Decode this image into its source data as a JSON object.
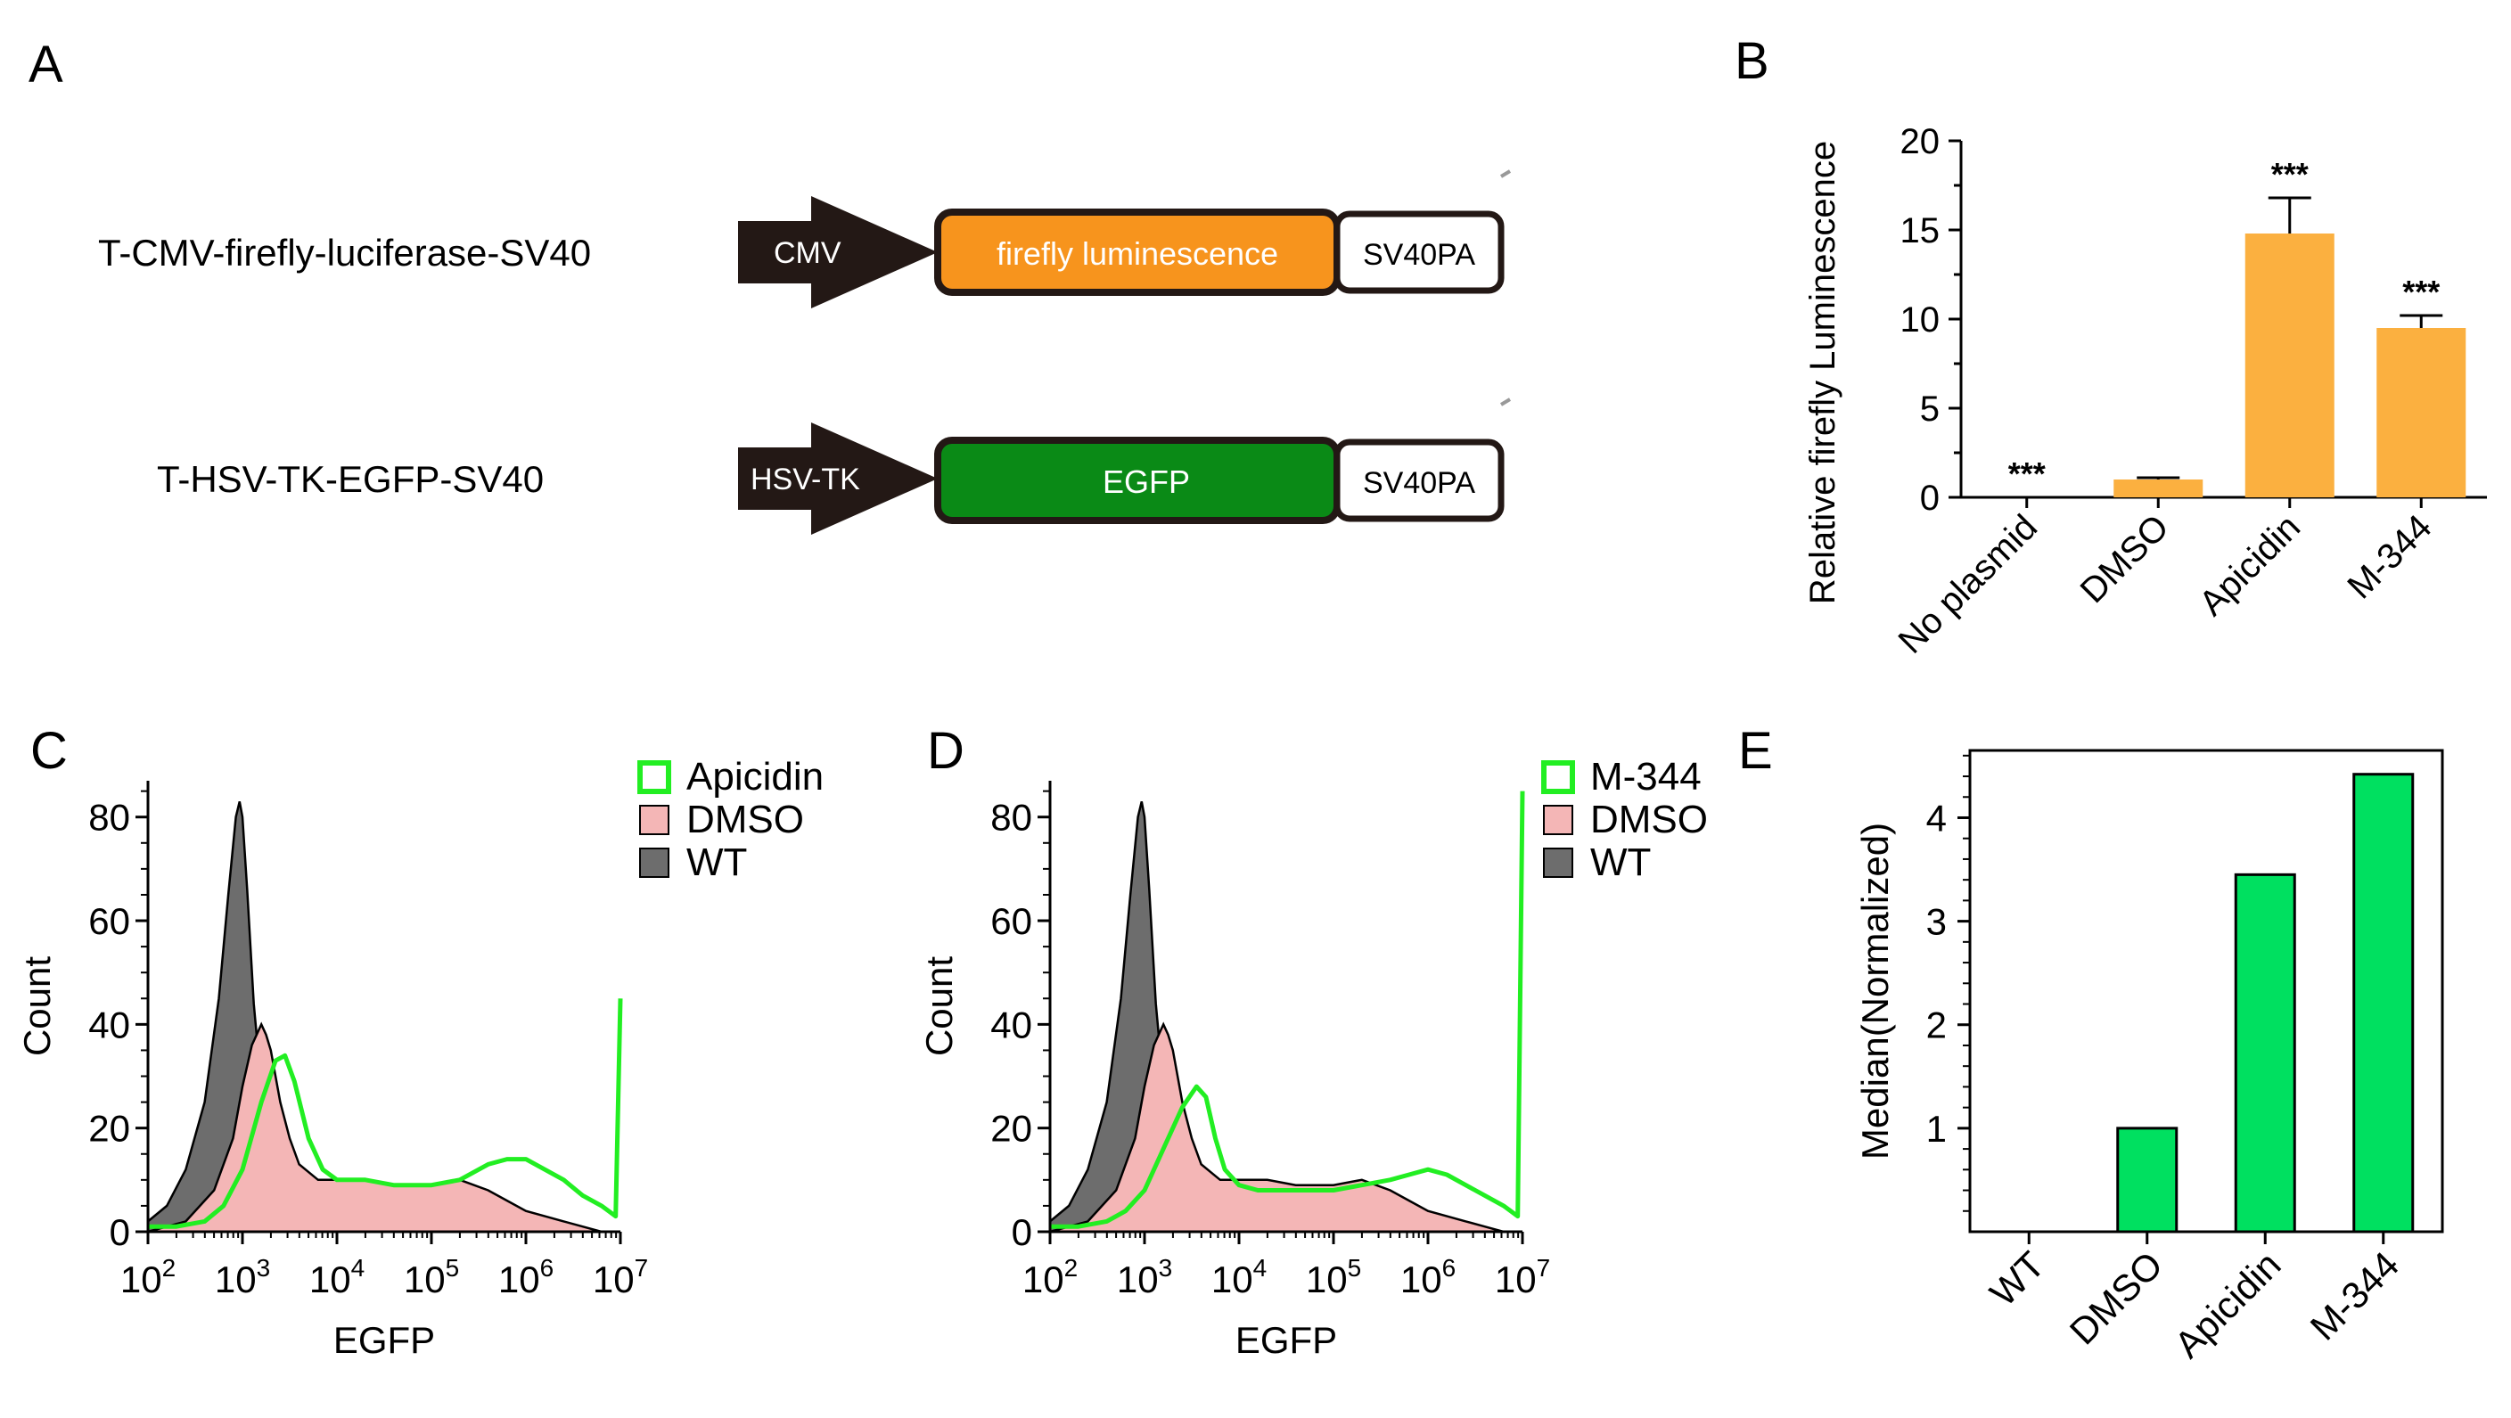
{
  "panel_labels": {
    "a": "A",
    "b": "B",
    "c": "C",
    "d": "D",
    "e": "E"
  },
  "constructs": [
    {
      "name": "T-CMV-firefly-luciferase-SV40",
      "promoter": "CMV",
      "gene": "firefly luminescence",
      "terminator": "SV40PA",
      "gene_color": "#f7941d",
      "gene_text_color": "#ffffff"
    },
    {
      "name": "T-HSV-TK-EGFP-SV40",
      "promoter": "HSV-TK",
      "gene": "EGFP",
      "terminator": "SV40PA",
      "gene_color": "#0a8a16",
      "gene_text_color": "#ffffff"
    }
  ],
  "colors": {
    "dark": "#231815",
    "bar_b": "#fbb040",
    "bar_e": "#00e060",
    "green_line": "#22ee22",
    "dmso_fill": "#f4b6b6",
    "wt_fill": "#6d6d6d"
  },
  "chart_data": [
    {
      "id": "B",
      "type": "bar",
      "title": "",
      "xlabel": "",
      "ylabel": "Relative firefly Luminescence",
      "categories": [
        "No plasmid",
        "DMSO",
        "Apicidin",
        "M-344"
      ],
      "values": [
        0,
        1,
        14.8,
        9.5
      ],
      "errors": [
        0,
        0.1,
        2.0,
        0.7
      ],
      "annotations": [
        "***",
        "",
        "***",
        "***"
      ],
      "ylim": [
        0,
        20
      ],
      "yticks": [
        0,
        5,
        10,
        15,
        20
      ],
      "ytick_labels": [
        "0",
        "5",
        "10",
        "15",
        "20"
      ]
    },
    {
      "id": "C",
      "type": "area",
      "xlabel": "EGFP",
      "ylabel": "Count",
      "xscale": "log",
      "xlim_log10": [
        2,
        7
      ],
      "ylim": [
        0,
        87
      ],
      "yticks": [
        0,
        20,
        40,
        60,
        80
      ],
      "ytick_labels": [
        "0",
        "20",
        "40",
        "60",
        "80"
      ],
      "xtick_labels": [
        {
          "base": "10",
          "exp": "2"
        },
        {
          "base": "10",
          "exp": "3"
        },
        {
          "base": "10",
          "exp": "4"
        },
        {
          "base": "10",
          "exp": "5"
        },
        {
          "base": "10",
          "exp": "6"
        },
        {
          "base": "10",
          "exp": "7"
        }
      ],
      "legend": [
        "Apicidin",
        "DMSO",
        "WT"
      ],
      "series": [
        {
          "name": "WT",
          "style": "fill-dark",
          "x": [
            2.0,
            2.2,
            2.4,
            2.6,
            2.75,
            2.85,
            2.93,
            2.97,
            3.0,
            3.05,
            3.12,
            3.2,
            3.3,
            3.4,
            3.5,
            3.6,
            3.8,
            4.0
          ],
          "y": [
            2,
            5,
            12,
            25,
            45,
            65,
            80,
            83,
            80,
            66,
            44,
            28,
            14,
            8,
            4,
            2,
            1,
            0
          ]
        },
        {
          "name": "DMSO",
          "style": "fill-pink",
          "x": [
            2.0,
            2.4,
            2.7,
            2.9,
            3.0,
            3.1,
            3.2,
            3.25,
            3.3,
            3.4,
            3.5,
            3.6,
            3.8,
            4.0,
            4.3,
            4.6,
            5.0,
            5.3,
            5.6,
            5.8,
            6.0,
            6.2,
            6.4,
            6.6,
            6.8,
            7.0
          ],
          "y": [
            0,
            2,
            8,
            18,
            28,
            36,
            40,
            38,
            35,
            25,
            18,
            13,
            10,
            10,
            10,
            9,
            9,
            10,
            8,
            6,
            4,
            3,
            2,
            1,
            0,
            0
          ]
        },
        {
          "name": "Apicidin",
          "style": "line-green",
          "x": [
            2.0,
            2.3,
            2.6,
            2.8,
            3.0,
            3.2,
            3.35,
            3.45,
            3.55,
            3.7,
            3.85,
            4.0,
            4.3,
            4.6,
            5.0,
            5.3,
            5.6,
            5.8,
            6.0,
            6.2,
            6.4,
            6.6,
            6.8,
            6.95,
            7.0
          ],
          "y": [
            1,
            1,
            2,
            5,
            12,
            25,
            33,
            34,
            29,
            18,
            12,
            10,
            10,
            9,
            9,
            10,
            13,
            14,
            14,
            12,
            10,
            7,
            5,
            3,
            45
          ]
        }
      ]
    },
    {
      "id": "D",
      "type": "area",
      "xlabel": "EGFP",
      "ylabel": "Count",
      "xscale": "log",
      "xlim_log10": [
        2,
        7
      ],
      "ylim": [
        0,
        87
      ],
      "yticks": [
        0,
        20,
        40,
        60,
        80
      ],
      "ytick_labels": [
        "0",
        "20",
        "40",
        "60",
        "80"
      ],
      "xtick_labels": [
        {
          "base": "10",
          "exp": "2"
        },
        {
          "base": "10",
          "exp": "3"
        },
        {
          "base": "10",
          "exp": "4"
        },
        {
          "base": "10",
          "exp": "5"
        },
        {
          "base": "10",
          "exp": "6"
        },
        {
          "base": "10",
          "exp": "7"
        }
      ],
      "legend": [
        "M-344",
        "DMSO",
        "WT"
      ],
      "series": [
        {
          "name": "WT",
          "style": "fill-dark",
          "x": [
            2.0,
            2.2,
            2.4,
            2.6,
            2.75,
            2.85,
            2.93,
            2.97,
            3.0,
            3.05,
            3.12,
            3.2,
            3.3,
            3.4,
            3.5,
            3.6,
            3.8,
            4.0
          ],
          "y": [
            2,
            5,
            12,
            25,
            45,
            65,
            80,
            83,
            80,
            66,
            44,
            28,
            14,
            8,
            4,
            2,
            1,
            0
          ]
        },
        {
          "name": "DMSO",
          "style": "fill-pink",
          "x": [
            2.0,
            2.4,
            2.7,
            2.9,
            3.0,
            3.1,
            3.2,
            3.25,
            3.3,
            3.4,
            3.5,
            3.6,
            3.8,
            4.0,
            4.3,
            4.6,
            5.0,
            5.3,
            5.6,
            5.8,
            6.0,
            6.2,
            6.4,
            6.6,
            6.8,
            7.0
          ],
          "y": [
            0,
            2,
            8,
            18,
            28,
            36,
            40,
            38,
            35,
            25,
            18,
            13,
            10,
            10,
            10,
            9,
            9,
            10,
            8,
            6,
            4,
            3,
            2,
            1,
            0,
            0
          ]
        },
        {
          "name": "M-344",
          "style": "line-green",
          "x": [
            2.0,
            2.3,
            2.6,
            2.8,
            3.0,
            3.2,
            3.4,
            3.55,
            3.65,
            3.75,
            3.85,
            4.0,
            4.2,
            4.5,
            5.0,
            5.3,
            5.6,
            5.8,
            6.0,
            6.2,
            6.4,
            6.6,
            6.8,
            6.95,
            7.0
          ],
          "y": [
            1,
            1,
            2,
            4,
            8,
            16,
            24,
            28,
            26,
            18,
            12,
            9,
            8,
            8,
            8,
            9,
            10,
            11,
            12,
            11,
            9,
            7,
            5,
            3,
            85
          ]
        }
      ]
    },
    {
      "id": "E",
      "type": "bar",
      "xlabel": "",
      "ylabel": "Median(Normalized)",
      "categories": [
        "WT",
        "DMSO",
        "Apicidin",
        "M-344"
      ],
      "values": [
        0,
        1.0,
        3.45,
        4.42
      ],
      "ylim": [
        0,
        4.65
      ],
      "yticks": [
        1,
        2,
        3,
        4
      ],
      "ytick_labels": [
        "1",
        "2",
        "3",
        "4"
      ]
    }
  ]
}
